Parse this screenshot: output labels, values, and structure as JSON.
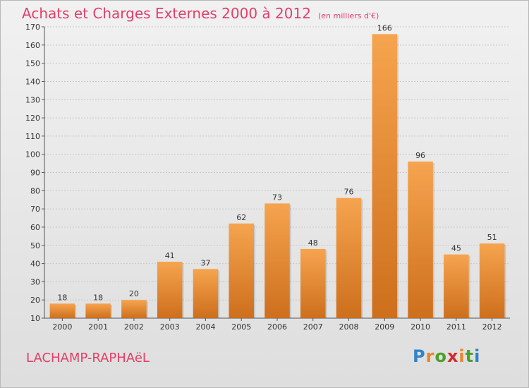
{
  "header": {
    "title": "Achats et Charges Externes 2000 à 2012",
    "subtitle": "(en milliers d'€)"
  },
  "footer": {
    "commune": "LACHAMP-RAPHAëL",
    "brand_letters": [
      "P",
      "r",
      "o",
      "x",
      "i",
      "t",
      "i"
    ],
    "brand_colors": [
      "#2f83c8",
      "#e8862a",
      "#4aa02c",
      "#d22b2b",
      "#e8862a",
      "#4aa02c",
      "#2f83c8"
    ]
  },
  "colors": {
    "bar_light": "#f6a44f",
    "bar_dark": "#cd6f1c",
    "grid": "#c8c8c8",
    "text_accent": "#e0406a"
  },
  "chart_data": {
    "type": "bar",
    "title": "Achats et Charges Externes 2000 à 2012",
    "subtitle": "(en milliers d'€)",
    "categories": [
      "2000",
      "2001",
      "2002",
      "2003",
      "2004",
      "2005",
      "2006",
      "2007",
      "2008",
      "2009",
      "2010",
      "2011",
      "2012"
    ],
    "values": [
      18,
      18,
      20,
      41,
      37,
      62,
      73,
      48,
      76,
      166,
      96,
      45,
      51
    ],
    "ylim": [
      10,
      170
    ],
    "yticks": [
      10,
      20,
      30,
      40,
      50,
      60,
      70,
      80,
      90,
      100,
      110,
      120,
      130,
      140,
      150,
      160,
      170
    ],
    "grid": true,
    "data_labels": true
  }
}
